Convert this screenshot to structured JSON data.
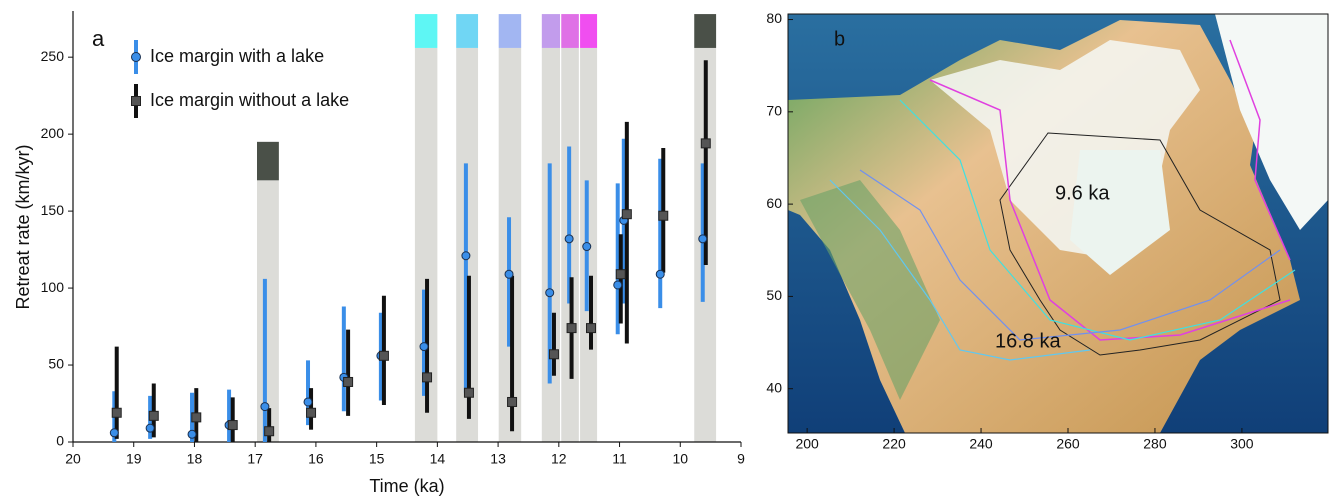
{
  "chart_data": [
    {
      "type": "errorbar",
      "label": "a",
      "xlabel": "Time (ka)",
      "ylabel": "Retreat rate (km/kyr)",
      "xlim": [
        20,
        9
      ],
      "ylim": [
        0,
        280
      ],
      "xticks": [
        20,
        19,
        18,
        17,
        16,
        15,
        14,
        13,
        12,
        11,
        10,
        9
      ],
      "yticks": [
        0,
        50,
        100,
        150,
        200,
        250
      ],
      "spans": [
        {
          "start": 16.97,
          "end": 16.61,
          "top": 170,
          "band_top": 195,
          "color": "#4a5048"
        },
        {
          "start": 14.37,
          "end": 14.0,
          "top": 256,
          "band_top": 278,
          "color": "#5ef6f4"
        },
        {
          "start": 13.69,
          "end": 13.33,
          "top": 256,
          "band_top": 278,
          "color": "#70d6f4"
        },
        {
          "start": 12.99,
          "end": 12.62,
          "top": 256,
          "band_top": 278,
          "color": "#a2b6f2"
        },
        {
          "start": 12.28,
          "end": 11.98,
          "top": 256,
          "band_top": 278,
          "color": "#c29cec"
        },
        {
          "start": 11.96,
          "end": 11.67,
          "top": 256,
          "band_top": 278,
          "color": "#df70e6"
        },
        {
          "start": 11.65,
          "end": 11.37,
          "top": 256,
          "band_top": 278,
          "color": "#f04ef0"
        },
        {
          "start": 9.77,
          "end": 9.41,
          "top": 256,
          "band_top": 278,
          "color": "#4a5048"
        }
      ],
      "series": [
        {
          "name": "Ice margin with a lake",
          "color": "#3a8ee8",
          "marker": "circle",
          "x": [
            19.32,
            18.73,
            18.04,
            17.43,
            16.84,
            16.13,
            15.54,
            14.93,
            14.22,
            13.53,
            12.82,
            12.15,
            11.83,
            11.54,
            11.03,
            10.93,
            10.33,
            9.63
          ],
          "values": [
            6,
            9,
            5,
            11,
            23,
            26,
            42,
            56,
            62,
            121,
            109,
            97,
            132,
            127,
            102,
            144,
            109,
            132
          ],
          "low": [
            0,
            2,
            0,
            0,
            0,
            11,
            20,
            27,
            30,
            32,
            62,
            38,
            90,
            85,
            70,
            90,
            87,
            91
          ],
          "high": [
            33,
            30,
            32,
            34,
            106,
            53,
            88,
            84,
            99,
            181,
            146,
            181,
            192,
            170,
            168,
            197,
            184,
            181
          ]
        },
        {
          "name": "Ice margin without a lake",
          "color": "#111111",
          "marker": "square",
          "x": [
            19.28,
            18.67,
            17.97,
            17.37,
            16.77,
            16.08,
            15.47,
            14.88,
            14.17,
            13.48,
            12.77,
            12.08,
            11.79,
            11.47,
            10.98,
            10.88,
            10.28,
            9.58
          ],
          "values": [
            19,
            17,
            16,
            11,
            7,
            19,
            39,
            56,
            42,
            32,
            26,
            57,
            74,
            74,
            109,
            148,
            147,
            194
          ],
          "low": [
            2,
            3,
            0,
            0,
            0,
            8,
            17,
            24,
            19,
            15,
            7,
            43,
            41,
            60,
            77,
            64,
            110,
            115
          ],
          "high": [
            62,
            38,
            35,
            29,
            22,
            35,
            73,
            95,
            106,
            108,
            108,
            84,
            107,
            108,
            135,
            208,
            191,
            248
          ]
        }
      ]
    },
    {
      "type": "map",
      "label": "b",
      "xlim": [
        195.6,
        319.8
      ],
      "ylim": [
        35.2,
        80.6
      ],
      "xticks": [
        200,
        220,
        240,
        260,
        280,
        300
      ],
      "yticks": [
        40,
        50,
        60,
        70,
        80
      ],
      "annotations": [
        "9.6 ka",
        "16.8 ka"
      ]
    }
  ]
}
